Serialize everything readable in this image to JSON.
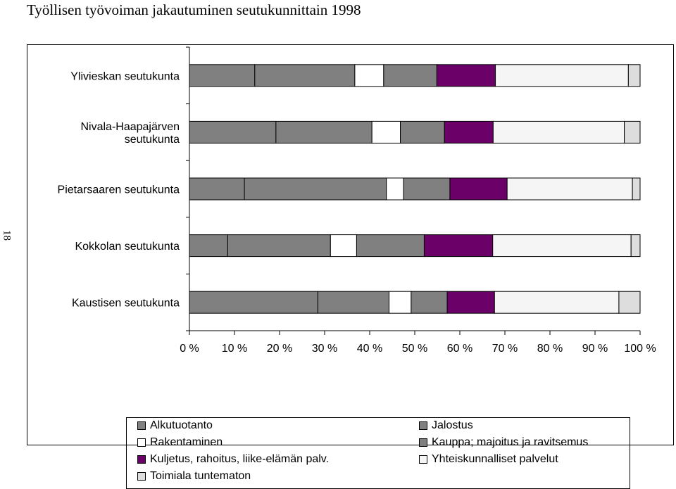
{
  "page": {
    "title": "Työllisen työvoiman jakautuminen seutukunnittain 1998",
    "page_number": "18"
  },
  "chart_data": {
    "type": "bar",
    "orientation": "horizontal",
    "stacked": "percent",
    "title": "Työllisen työvoiman jakautuminen seutukunnittain 1998",
    "xlabel": "",
    "ylabel": "",
    "xlim": [
      0,
      100
    ],
    "x_ticks": [
      "0 %",
      "10 %",
      "20 %",
      "30 %",
      "40 %",
      "50 %",
      "60 %",
      "70 %",
      "80 %",
      "90 %",
      "100 %"
    ],
    "grid": false,
    "legend_position": "bottom",
    "categories": [
      [
        "Ylivieskan seutukunta"
      ],
      [
        "Nivala-Haapajärven",
        "seutukunta"
      ],
      [
        "Pietarsaaren seutukunta"
      ],
      [
        "Kokkolan seutukunta"
      ],
      [
        "Kaustisen seutukunta"
      ]
    ],
    "series": [
      {
        "name": "Alkutuotanto",
        "color": "#808080",
        "values": [
          14.5,
          19.2,
          12.2,
          8.5,
          28.5
        ]
      },
      {
        "name": "Jalostus",
        "color": "#808080",
        "values": [
          22.2,
          21.3,
          31.5,
          22.8,
          15.8
        ]
      },
      {
        "name": "Rakentaminen",
        "color": "#ffffff",
        "values": [
          6.4,
          6.3,
          3.8,
          5.8,
          4.9
        ]
      },
      {
        "name": "Kauppa; majoitus ja ravitsemus",
        "color": "#808080",
        "values": [
          11.8,
          9.8,
          10.3,
          15.0,
          8.0
        ]
      },
      {
        "name": "Kuljetus, rahoitus, liike-elämän palv.",
        "color": "#6b0068",
        "values": [
          13.0,
          10.8,
          12.7,
          15.2,
          10.5
        ]
      },
      {
        "name": "Yhteiskunnalliset palvelut",
        "color": "#f5f5f5",
        "values": [
          29.5,
          29.1,
          27.8,
          30.7,
          27.6
        ]
      },
      {
        "name": "Toimiala tuntematon",
        "color": "#dddddd",
        "values": [
          2.6,
          3.5,
          1.7,
          2.0,
          4.7
        ]
      }
    ]
  }
}
